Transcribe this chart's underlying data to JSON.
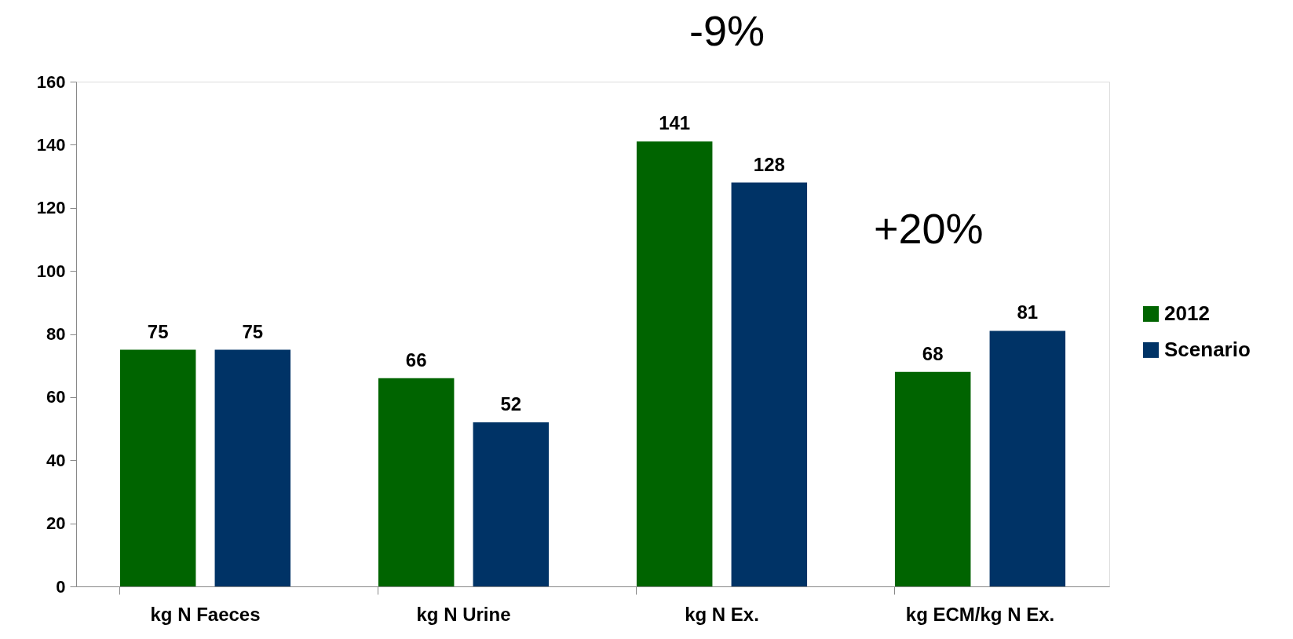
{
  "chart_data": {
    "type": "bar",
    "categories": [
      "kg N Faeces",
      "kg N Urine",
      "kg N Ex.",
      "kg ECM/kg N Ex."
    ],
    "series": [
      {
        "name": "2012",
        "color": "#006400",
        "values": [
          75,
          66,
          141,
          68
        ]
      },
      {
        "name": "Scenario",
        "color": "#003366",
        "values": [
          75,
          52,
          128,
          81
        ]
      }
    ],
    "ylim": [
      0,
      160
    ],
    "yticks": [
      0,
      20,
      40,
      60,
      80,
      100,
      120,
      140,
      160
    ],
    "data_labels": true,
    "grid": false,
    "legend": "right",
    "annotations": [
      "-9%",
      "+20%"
    ]
  }
}
